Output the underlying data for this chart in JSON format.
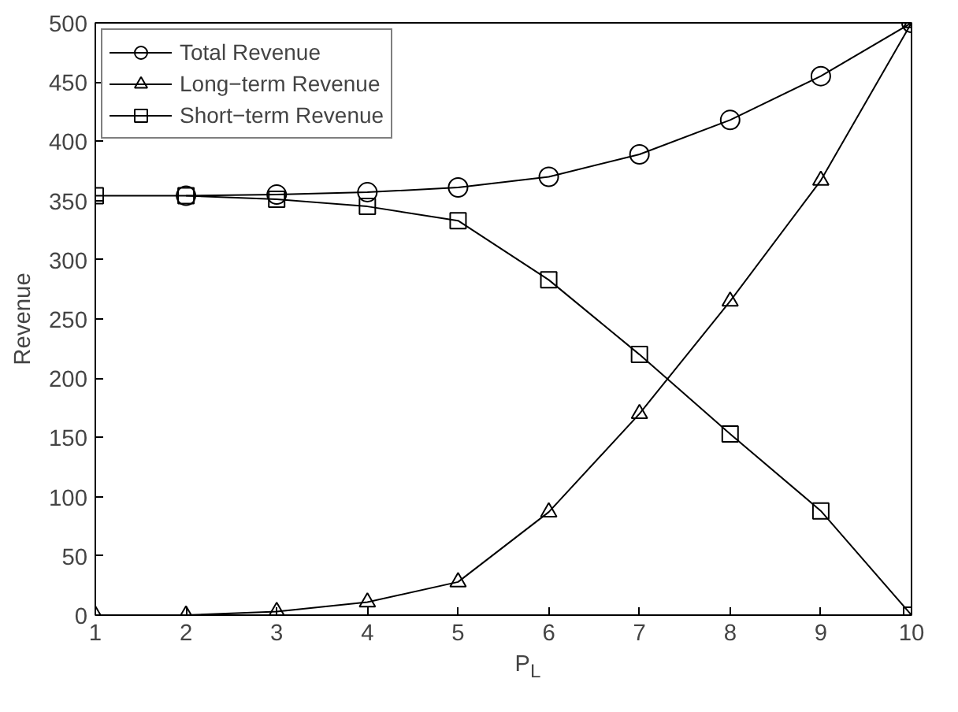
{
  "chart_data": {
    "type": "line",
    "xlabel": "P$_{L}$",
    "ylabel": "Revenue",
    "x": [
      1,
      2,
      3,
      4,
      5,
      6,
      7,
      8,
      9,
      10
    ],
    "series": [
      {
        "name": "Total Revenue",
        "color": "#000000",
        "marker": "circle",
        "values": [
          null,
          354,
          355,
          357,
          361,
          370,
          389,
          418,
          455,
          500
        ]
      },
      {
        "name": "Long−term Revenue",
        "color": "#000000",
        "marker": "triangle",
        "values": [
          0,
          0,
          3,
          11,
          28,
          87,
          170,
          265,
          367,
          500
        ]
      },
      {
        "name": "Short−term Revenue",
        "color": "#000000",
        "marker": "square",
        "values": [
          354,
          354,
          351,
          345,
          333,
          283,
          220,
          153,
          88,
          0
        ]
      }
    ],
    "xlim": [
      1,
      10
    ],
    "xticks": [
      1,
      2,
      3,
      4,
      5,
      6,
      7,
      8,
      9,
      10
    ],
    "ylim": [
      0,
      500
    ],
    "yticks": [
      0,
      50,
      100,
      150,
      200,
      250,
      300,
      350,
      400,
      450,
      500
    ],
    "grid": false,
    "legend": "top left",
    "line_style": "solid"
  }
}
